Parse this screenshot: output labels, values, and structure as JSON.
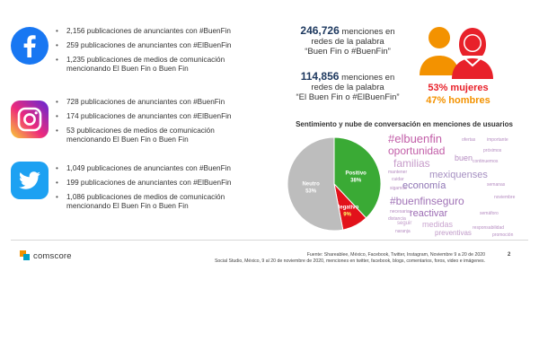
{
  "facebook": {
    "icon": "facebook-icon",
    "items": [
      "2,156 publicaciones de anunciantes con #BuenFin",
      "259 publicaciones de anunciantes con #ElBuenFin",
      "1,235 publicaciones de medios de comunicación mencionando El Buen Fin o Buen Fin"
    ]
  },
  "instagram": {
    "icon": "instagram-icon",
    "items": [
      "728 publicaciones de anunciantes con #BuenFin",
      "174 publicaciones de anunciantes con #ElBuenFin",
      "53 publicaciones de medios de comunicación mencionando El Buen Fin o Buen Fin"
    ]
  },
  "twitter": {
    "icon": "twitter-icon",
    "items": [
      "1,049 publicaciones de anunciantes con #BuenFin",
      "199 publicaciones de anunciantes con #ElBuenFin",
      "1,086 publicaciones de medios de comunicación mencionando El Buen Fin o Buen Fin"
    ]
  },
  "mentions": [
    {
      "number": "246,726",
      "text1": " menciones en",
      "text2": "redes de la palabra",
      "text3": "“Buen Fin o #BuenFin”"
    },
    {
      "number": "114,856",
      "text1": " menciones en",
      "text2": "redes de la palabra",
      "text3": "“El Buen Fin o #ElBuenFin”"
    }
  ],
  "demographics": {
    "women": "53% mujeres",
    "men": "47% hombres",
    "women_color": "#e8212a",
    "men_color": "#f39200"
  },
  "section_title": "Sentimiento y nube de conversación en menciones de usuarios",
  "chart_data": {
    "type": "pie",
    "title": "",
    "slices": [
      {
        "label": "Positivo",
        "value": 38,
        "display": "38%",
        "color": "#3aaa35"
      },
      {
        "label": "Negativo",
        "value": 9,
        "display": "9%",
        "color": "#e2121b"
      },
      {
        "label": "Neutro",
        "value": 53,
        "display": "53%",
        "color": "#bdbdbd"
      }
    ]
  },
  "wordcloud": [
    {
      "text": "#elbuenfin",
      "color": "#c25ea8",
      "size": 13
    },
    {
      "text": "oportunidad",
      "color": "#c25ea8",
      "size": 12
    },
    {
      "text": "familias",
      "color": "#c69bc9",
      "size": 12
    },
    {
      "text": "mexiquenses",
      "color": "#a58fc1",
      "size": 11
    },
    {
      "text": "economía",
      "color": "#8e74b4",
      "size": 11
    },
    {
      "text": "#buenfinseguro",
      "color": "#a072b6",
      "size": 12
    },
    {
      "text": "reactivar",
      "color": "#9b6ab3",
      "size": 11
    },
    {
      "text": "medidas",
      "color": "#caa6d0",
      "size": 9
    },
    {
      "text": "preventivas",
      "color": "#c09ac8",
      "size": 8
    },
    {
      "text": "buen",
      "color": "#b58cc1",
      "size": 9
    },
    {
      "text": "seguir",
      "color": "#c09ac8",
      "size": 6
    },
    {
      "text": "importante",
      "color": "#b58cc1",
      "size": 5
    },
    {
      "text": "próximos",
      "color": "#b58cc1",
      "size": 5
    },
    {
      "text": "continuemos",
      "color": "#b58cc1",
      "size": 5
    },
    {
      "text": "mantener",
      "color": "#b58cc1",
      "size": 5
    },
    {
      "text": "cuidar",
      "color": "#b58cc1",
      "size": 5
    },
    {
      "text": "semanas",
      "color": "#b58cc1",
      "size": 5
    },
    {
      "text": "sigamos",
      "color": "#b58cc1",
      "size": 5
    },
    {
      "text": "necesarias",
      "color": "#b58cc1",
      "size": 5
    },
    {
      "text": "naranja",
      "color": "#b58cc1",
      "size": 5
    },
    {
      "text": "responsabilidad",
      "color": "#b58cc1",
      "size": 5
    },
    {
      "text": "semáforo",
      "color": "#b58cc1",
      "size": 5
    },
    {
      "text": "noviembre",
      "color": "#b58cc1",
      "size": 5
    },
    {
      "text": "promoción",
      "color": "#b58cc1",
      "size": 5
    },
    {
      "text": "distancia",
      "color": "#b58cc1",
      "size": 5
    },
    {
      "text": "ofertas",
      "color": "#b58cc1",
      "size": 5
    }
  ],
  "footer": {
    "logo": "comscore",
    "source_line1": "Fuente: Shareablee, México, Facebook, Twitter, Instagram, Noviembre 9 a 20 de 2020",
    "source_line2": "Social Studio, México, 9 al 20 de noviembre de 2020, menciones en twitter, facebook, blogs, comentarios, foros, video e imágenes.",
    "page_number": "2"
  }
}
